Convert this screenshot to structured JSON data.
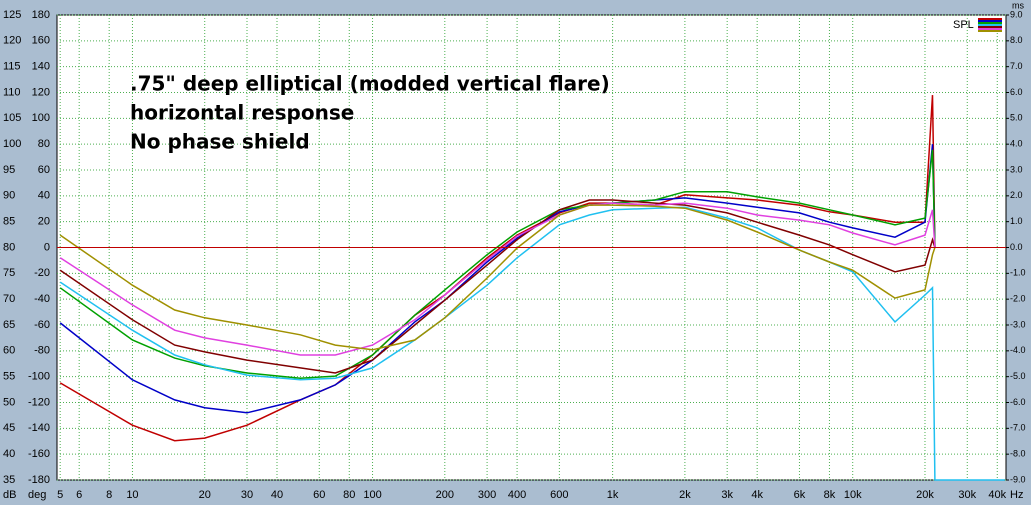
{
  "chart_data": {
    "type": "line",
    "annotations": [
      ".75\" deep elliptical (modded vertical flare)",
      "horizontal response",
      "No phase shield"
    ],
    "legend_label": "SPL",
    "x_unit": "Hz",
    "y_unit": "dB",
    "deg_unit": "deg",
    "y2_unit": "ms",
    "xscale": "log",
    "grid": true,
    "xlim": [
      4.85,
      43500
    ],
    "xticks": [
      5,
      6,
      8,
      10,
      20,
      30,
      40,
      60,
      80,
      100,
      200,
      300,
      400,
      600,
      {
        "value": 1000,
        "label": "1k"
      },
      {
        "value": 2000,
        "label": "2k"
      },
      {
        "value": 3000,
        "label": "3k"
      },
      {
        "value": 4000,
        "label": "4k"
      },
      {
        "value": 6000,
        "label": "6k"
      },
      {
        "value": 8000,
        "label": "8k"
      },
      {
        "value": 10000,
        "label": "10k"
      },
      {
        "value": 20000,
        "label": "20k"
      },
      {
        "value": 30000,
        "label": "30k"
      },
      {
        "value": 40000,
        "label": "40k"
      }
    ],
    "ylim": [
      35,
      125
    ],
    "yticks": [
      35,
      40,
      45,
      50,
      55,
      60,
      65,
      70,
      75,
      80,
      85,
      90,
      95,
      100,
      105,
      110,
      115,
      120,
      125
    ],
    "deglim": [
      -180,
      180
    ],
    "degticks": [
      -180,
      -160,
      -140,
      -120,
      -100,
      -80,
      -60,
      -40,
      -20,
      0,
      20,
      40,
      60,
      80,
      100,
      120,
      140,
      160,
      180
    ],
    "y2lim": [
      -9,
      9
    ],
    "y2ticks": [
      {
        "value": -9,
        "label": "-9.0"
      },
      {
        "value": -8,
        "label": "-8.0"
      },
      {
        "value": -7,
        "label": "-7.0"
      },
      {
        "value": -6,
        "label": "-6.0"
      },
      {
        "value": -5,
        "label": "-5.0"
      },
      {
        "value": -4,
        "label": "-4.0"
      },
      {
        "value": -3,
        "label": "-3.0"
      },
      {
        "value": -2,
        "label": "-2.0"
      },
      {
        "value": -1,
        "label": "-1.0"
      },
      {
        "value": 0,
        "label": "0.0"
      },
      {
        "value": 1,
        "label": "1.0"
      },
      {
        "value": 2,
        "label": "2.0"
      },
      {
        "value": 3,
        "label": "3.0"
      },
      {
        "value": 4,
        "label": "4.0"
      },
      {
        "value": 5,
        "label": "5.0"
      },
      {
        "value": 6,
        "label": "6.0"
      },
      {
        "value": 7,
        "label": "7.0"
      },
      {
        "value": 8,
        "label": "8.0"
      },
      {
        "value": 9,
        "label": "9.0"
      }
    ],
    "reference_line": {
      "value": 80,
      "color": "#c00000"
    },
    "x": [
      5,
      10,
      15,
      20,
      30,
      50,
      70,
      100,
      150,
      200,
      300,
      400,
      600,
      800,
      1000,
      1500,
      2000,
      3000,
      4000,
      6000,
      8000,
      10000,
      15000,
      20000,
      21500,
      22000,
      43000
    ],
    "series": [
      {
        "color": "#c00000",
        "values": [
          53.8,
          45.6,
          42.6,
          43.1,
          45.6,
          50.5,
          53.4,
          59.2,
          66.9,
          70.8,
          78,
          82.4,
          86.7,
          88.6,
          88.6,
          88.2,
          90.2,
          89.6,
          89.2,
          88.2,
          86.9,
          86.3,
          84.9,
          84.9,
          109.5,
          80,
          null
        ]
      },
      {
        "color": "#0000c8",
        "values": [
          65.4,
          54.4,
          50.5,
          49,
          48,
          50.5,
          53.4,
          58.2,
          65.6,
          69.8,
          77.2,
          81.8,
          86.9,
          88.2,
          88.6,
          89.2,
          89.6,
          88.6,
          87.8,
          86.7,
          84.9,
          83.8,
          82,
          84.9,
          100,
          80,
          null
        ]
      },
      {
        "color": "#00a000",
        "values": [
          72.2,
          62.1,
          58.6,
          57.1,
          55.7,
          54.7,
          55.1,
          59.2,
          66.9,
          71.8,
          78.6,
          83,
          87.3,
          88.2,
          88.6,
          89.2,
          90.8,
          90.8,
          89.8,
          88.6,
          87.3,
          86.3,
          84.4,
          85.7,
          98.9,
          80,
          null
        ]
      },
      {
        "color": "#20c0f0",
        "values": [
          73.3,
          64,
          59.2,
          57.3,
          55.3,
          54.4,
          54.7,
          56.7,
          62.1,
          66.4,
          72.7,
          78,
          84.4,
          86.3,
          87.3,
          87.6,
          87.8,
          85.7,
          83.8,
          79.5,
          77.2,
          75.3,
          65.6,
          70.8,
          72.2,
          35,
          35
        ]
      },
      {
        "color": "#800000",
        "values": [
          75.6,
          66,
          61.1,
          59.8,
          58.2,
          56.7,
          55.7,
          58.2,
          65,
          69.8,
          76.6,
          81.5,
          87.3,
          89.2,
          89.2,
          88.6,
          88.2,
          86.7,
          84.9,
          82.4,
          80.5,
          78.6,
          75.3,
          76.6,
          81.5,
          80,
          null
        ]
      },
      {
        "color": "#e040e0",
        "values": [
          78,
          68.9,
          64,
          62.5,
          61.1,
          59.2,
          59.2,
          61.1,
          66,
          70.8,
          77.6,
          82.2,
          86.3,
          88.2,
          88.6,
          88.2,
          88.6,
          87.6,
          86.3,
          85.3,
          84.4,
          82.8,
          80.5,
          82.4,
          87.3,
          80,
          null
        ]
      },
      {
        "color": "#a09000",
        "values": [
          82.4,
          72.7,
          67.9,
          66.4,
          65,
          63.1,
          61.1,
          60.2,
          62.1,
          66.4,
          74.1,
          79.9,
          86.3,
          88.2,
          88.2,
          88,
          87.6,
          85.3,
          83,
          79.5,
          77.2,
          75.6,
          70.2,
          71.8,
          78.6,
          80,
          null
        ]
      }
    ]
  }
}
